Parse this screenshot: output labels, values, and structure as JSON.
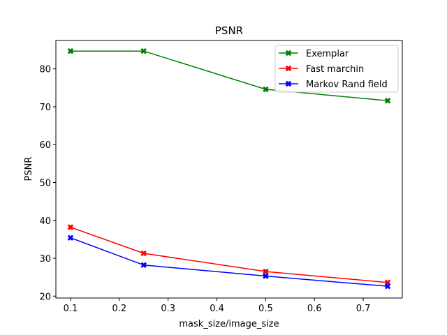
{
  "chart_data": {
    "type": "line",
    "title": "PSNR",
    "xlabel": "mask_size/image_size",
    "ylabel": "PSNR",
    "x": [
      0.1,
      0.25,
      0.5,
      0.75
    ],
    "xlim": [
      0.07,
      0.78
    ],
    "ylim": [
      19.5,
      87.5
    ],
    "xticks": [
      0.1,
      0.2,
      0.3,
      0.4,
      0.5,
      0.6,
      0.7
    ],
    "yticks": [
      20,
      30,
      40,
      50,
      60,
      70,
      80
    ],
    "grid": false,
    "legend_position": "top-right",
    "series": [
      {
        "name": "Exemplar",
        "color": "#008000",
        "values": [
          84.7,
          84.7,
          74.6,
          71.6
        ]
      },
      {
        "name": "Fast marchin",
        "color": "#ff0000",
        "values": [
          38.2,
          31.3,
          26.5,
          23.6
        ]
      },
      {
        "name": "Markov Rand field",
        "color": "#0000ff",
        "values": [
          35.4,
          28.2,
          25.3,
          22.6
        ]
      }
    ]
  }
}
